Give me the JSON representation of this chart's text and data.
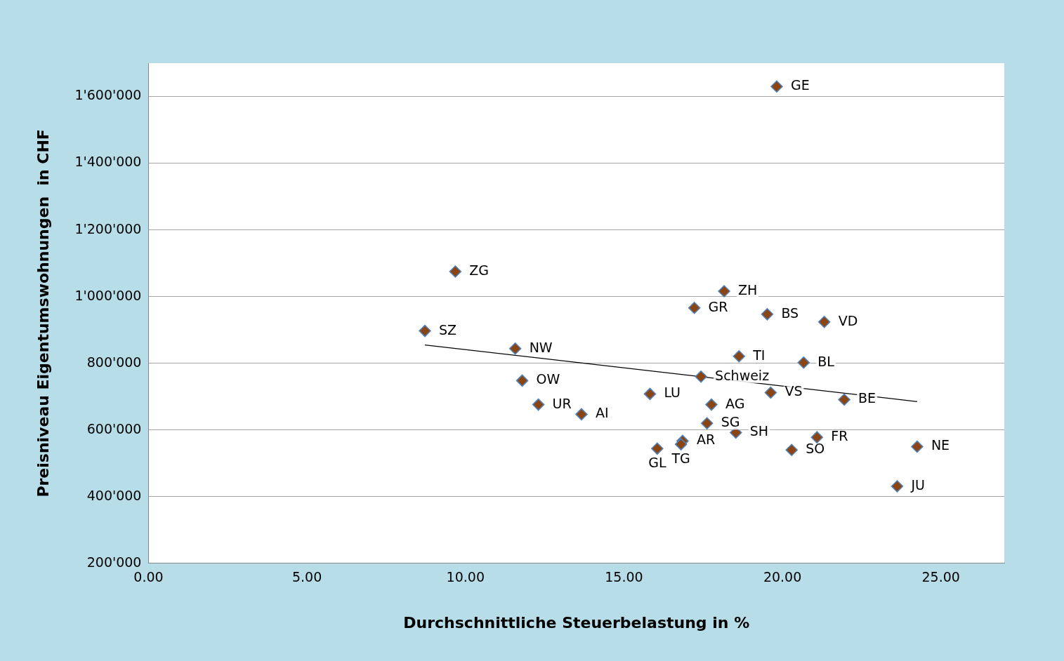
{
  "chart_data": {
    "type": "scatter",
    "xlabel": "Durchschnittliche Steuerbelastung in %",
    "ylabel": "Preisniveau Eigentumswohnungen  in CHF",
    "xlim": [
      0,
      27
    ],
    "ylim": [
      200000,
      1700000
    ],
    "xticks": [
      {
        "value": 0,
        "label": "0.00"
      },
      {
        "value": 5,
        "label": "5.00"
      },
      {
        "value": 10,
        "label": "10.00"
      },
      {
        "value": 15,
        "label": "15.00"
      },
      {
        "value": 20,
        "label": "20.00"
      },
      {
        "value": 25,
        "label": "25.00"
      }
    ],
    "yticks": [
      {
        "value": 200000,
        "label": "200'000"
      },
      {
        "value": 400000,
        "label": "400'000"
      },
      {
        "value": 600000,
        "label": "600'000"
      },
      {
        "value": 800000,
        "label": "800'000"
      },
      {
        "value": 1000000,
        "label": "1'000'000"
      },
      {
        "value": 1200000,
        "label": "1'200'000"
      },
      {
        "value": 1400000,
        "label": "1'400'000"
      },
      {
        "value": 1600000,
        "label": "1'600'000"
      }
    ],
    "grid": "y",
    "legend": false,
    "marker": "diamond",
    "series": [
      {
        "color": "#8b4513",
        "x": [
          19.82,
          9.68,
          18.16,
          17.22,
          19.52,
          21.32,
          8.72,
          11.57,
          18.63,
          20.67,
          17.43,
          11.79,
          15.82,
          19.63,
          21.95,
          12.3,
          17.76,
          13.66,
          17.62,
          18.53,
          21.09,
          16.85,
          16.8,
          16.05,
          20.29,
          24.25,
          23.62
        ],
        "values": [
          1630000,
          1075000,
          1016000,
          966000,
          947000,
          924000,
          897000,
          844000,
          821000,
          802000,
          760000,
          748000,
          708000,
          712000,
          691000,
          676000,
          676000,
          647000,
          620000,
          592000,
          578000,
          567000,
          557000,
          544000,
          540000,
          550000,
          431000
        ]
      },
      {
        "type": "line",
        "color": "#000000",
        "marker": "none",
        "x": [
          8.72,
          24.25
        ],
        "values": [
          855000,
          685000
        ]
      }
    ],
    "annotations": [
      {
        "text": "GE",
        "x": 19.82,
        "y": 1630000
      },
      {
        "text": "ZG",
        "x": 9.68,
        "y": 1075000
      },
      {
        "text": "ZH",
        "x": 18.16,
        "y": 1016000
      },
      {
        "text": "GR",
        "x": 17.22,
        "y": 966000
      },
      {
        "text": "BS",
        "x": 19.52,
        "y": 947000
      },
      {
        "text": "VD",
        "x": 21.32,
        "y": 924000
      },
      {
        "text": "SZ",
        "x": 8.72,
        "y": 897000
      },
      {
        "text": "NW",
        "x": 11.57,
        "y": 844000
      },
      {
        "text": "TI",
        "x": 18.63,
        "y": 821000
      },
      {
        "text": "BL",
        "x": 20.67,
        "y": 802000
      },
      {
        "text": "Schweiz",
        "x": 17.43,
        "y": 760000
      },
      {
        "text": "OW",
        "x": 11.79,
        "y": 748000
      },
      {
        "text": "LU",
        "x": 15.82,
        "y": 708000
      },
      {
        "text": "VS",
        "x": 19.63,
        "y": 712000
      },
      {
        "text": "BE",
        "x": 21.95,
        "y": 691000
      },
      {
        "text": "UR",
        "x": 12.3,
        "y": 676000
      },
      {
        "text": "AG",
        "x": 17.76,
        "y": 676000
      },
      {
        "text": "AI",
        "x": 13.66,
        "y": 647000
      },
      {
        "text": "SG",
        "x": 17.62,
        "y": 620000
      },
      {
        "text": "SH",
        "x": 18.53,
        "y": 592000
      },
      {
        "text": "FR",
        "x": 21.09,
        "y": 578000
      },
      {
        "text": "AR",
        "x": 16.85,
        "y": 567000
      },
      {
        "text": "TG",
        "x": 16.8,
        "y": 557000
      },
      {
        "text": "GL",
        "x": 16.05,
        "y": 544000
      },
      {
        "text": "SO",
        "x": 20.29,
        "y": 540000
      },
      {
        "text": "NE",
        "x": 24.25,
        "y": 550000
      },
      {
        "text": "JU",
        "x": 23.62,
        "y": 431000
      }
    ]
  }
}
